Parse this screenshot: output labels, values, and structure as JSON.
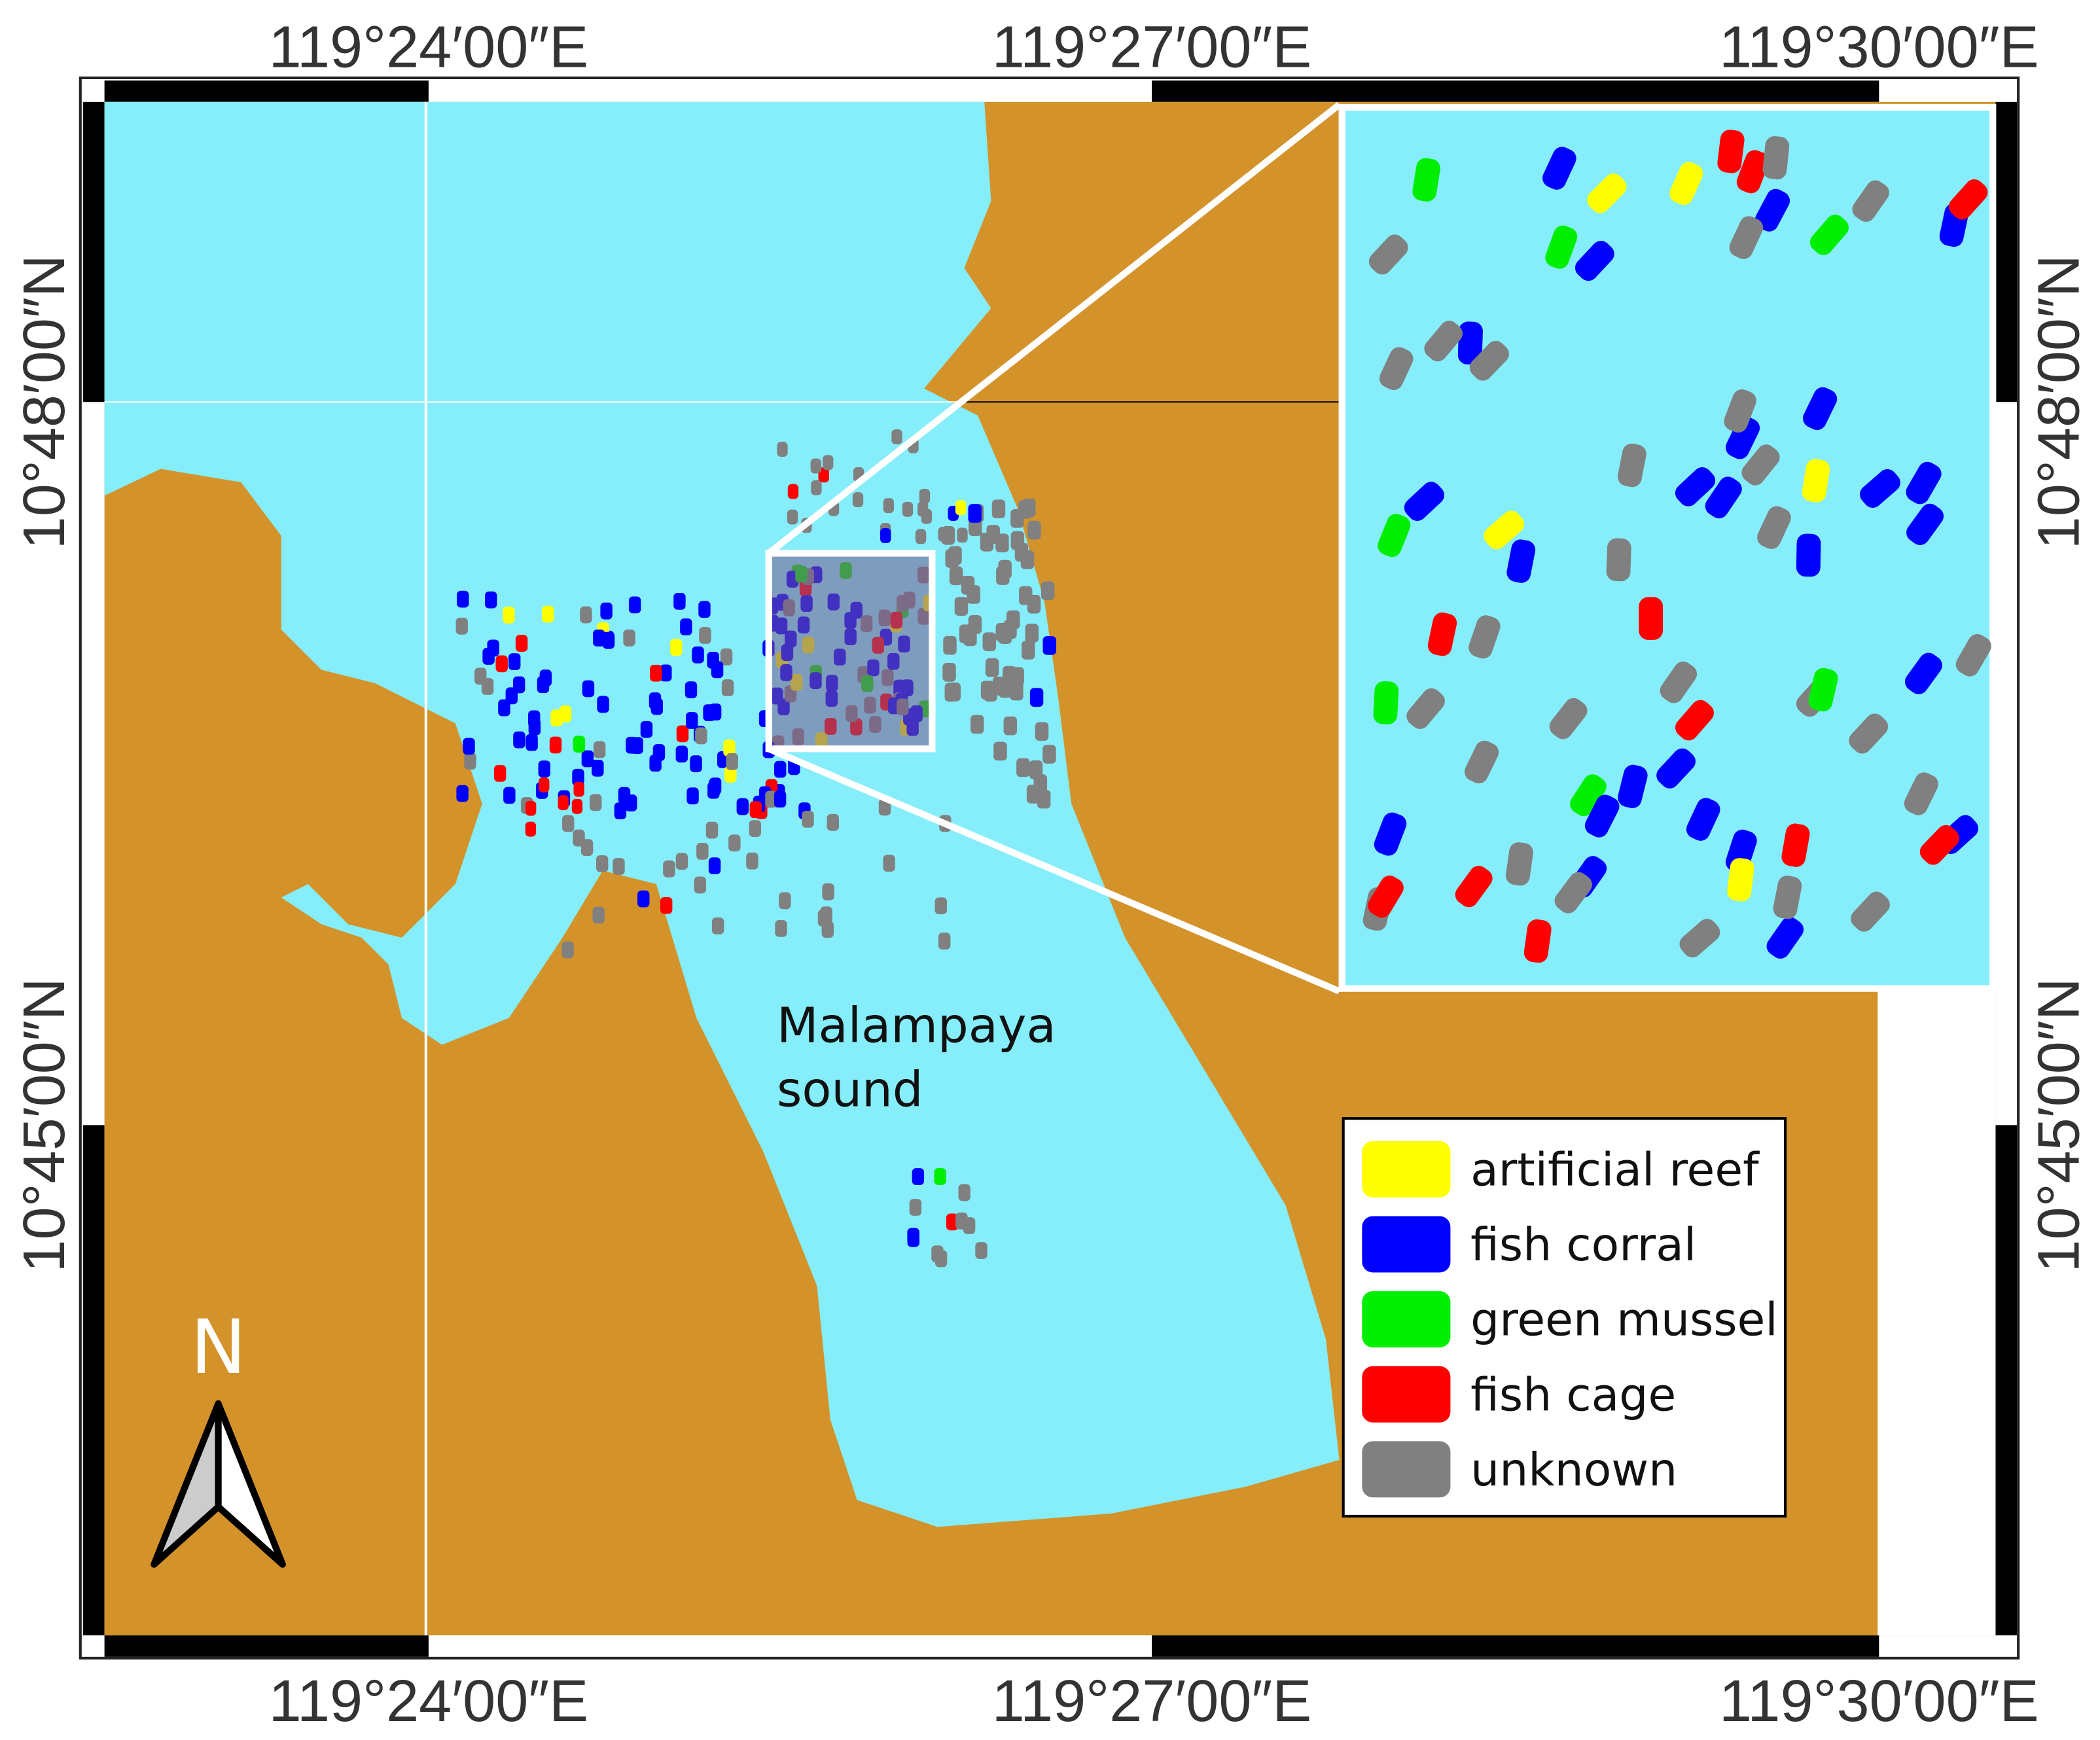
{
  "map": {
    "top_labels": [
      "119°24′00″E",
      "119°27′00″E",
      "119°30′00″E"
    ],
    "bottom_labels": [
      "119°24′00″E",
      "119°27′00″E",
      "119°30′00″E"
    ],
    "left_labels": [
      "10°48′00″N",
      "10°45′00″N"
    ],
    "right_labels": [
      "10°48′00″N",
      "10°45′00″N"
    ],
    "place_label": [
      "Malampaya",
      "sound"
    ],
    "north": "N",
    "legend": [
      {
        "label": "artificial reef",
        "color": "#ffff00"
      },
      {
        "label": "fish corral",
        "color": "#0000ff"
      },
      {
        "label": "green mussel",
        "color": "#00ee00"
      },
      {
        "label": "fish cage",
        "color": "#ff0000"
      },
      {
        "label": "unknown",
        "color": "#808080"
      }
    ]
  }
}
